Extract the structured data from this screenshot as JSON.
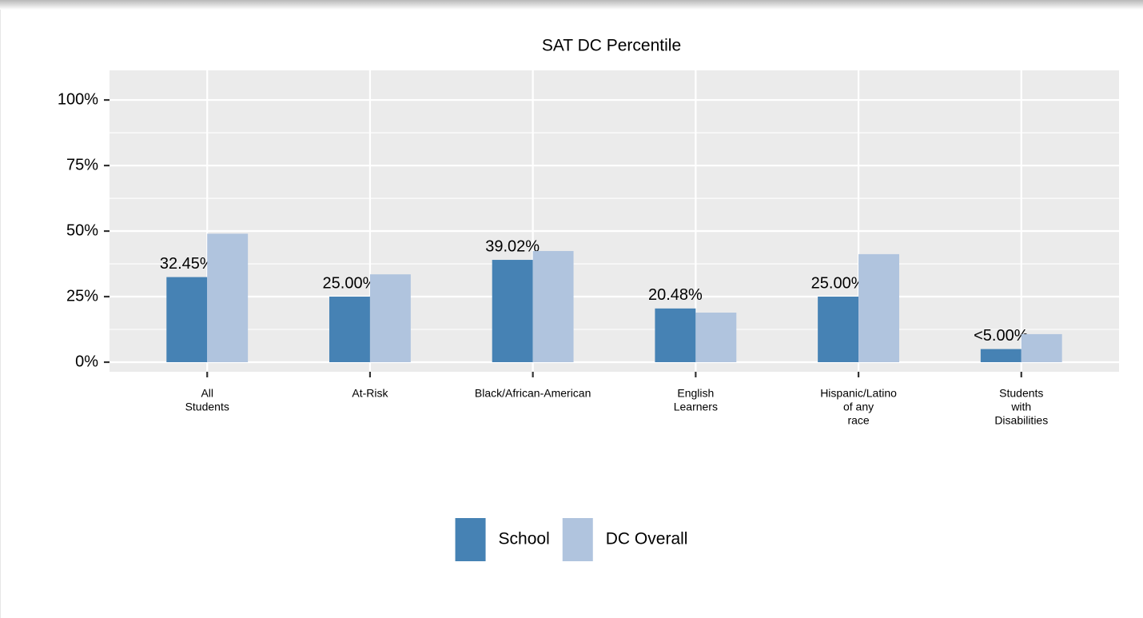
{
  "chart_data": {
    "type": "bar",
    "title": "SAT DC Percentile",
    "categories": [
      [
        "All",
        "Students"
      ],
      [
        "At-Risk"
      ],
      [
        "Black/African-American"
      ],
      [
        "English",
        "Learners"
      ],
      [
        "Hispanic/Latino",
        "of any",
        "race"
      ],
      [
        "Students",
        "with",
        "Disabilities"
      ]
    ],
    "series": [
      {
        "name": "School",
        "color": "#4682b4",
        "values": [
          32.45,
          25.0,
          39.02,
          20.48,
          25.0,
          5
        ],
        "value_labels": [
          "32.45%",
          "25.00%",
          "39.02%",
          "20.48%",
          "25.00%",
          "<5.00%"
        ]
      },
      {
        "name": "DC Overall",
        "color": "#b0c4de",
        "values": [
          49,
          33.5,
          42.4,
          18.9,
          41.2,
          10.7
        ]
      }
    ],
    "ylim": [
      -3.66,
      111.3
    ],
    "yticks": [
      {
        "value": 0,
        "label": "0%"
      },
      {
        "value": 25,
        "label": "25%"
      },
      {
        "value": 50,
        "label": "50%"
      },
      {
        "value": 75,
        "label": "75%"
      },
      {
        "value": 100,
        "label": "100%"
      }
    ],
    "minor_yticks": [
      12.5,
      37.5,
      62.5,
      87.5
    ],
    "grid": true,
    "legend": "bottom"
  }
}
